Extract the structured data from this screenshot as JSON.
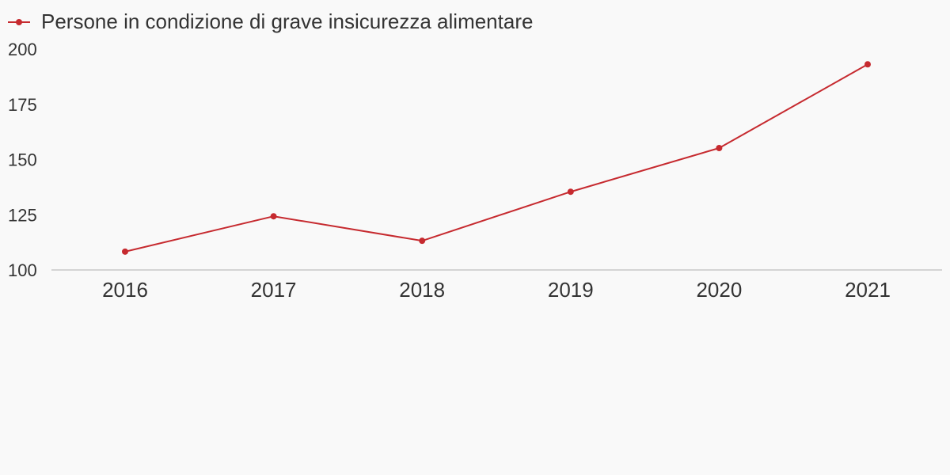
{
  "chart_data": {
    "type": "line",
    "categories": [
      "2016",
      "2017",
      "2018",
      "2019",
      "2020",
      "2021"
    ],
    "series": [
      {
        "name": "Persone in condizione di grave insicurezza alimentare",
        "color": "#c62a2f",
        "values": [
          108.3,
          124.3,
          113.2,
          135.4,
          155.2,
          193.1
        ]
      }
    ],
    "yticks": [
      "100",
      "125",
      "150",
      "175",
      "200"
    ],
    "ylim": [
      100,
      200
    ],
    "legend_position": "top-left",
    "grid": false,
    "baseline_color": "#d4d4d4"
  }
}
